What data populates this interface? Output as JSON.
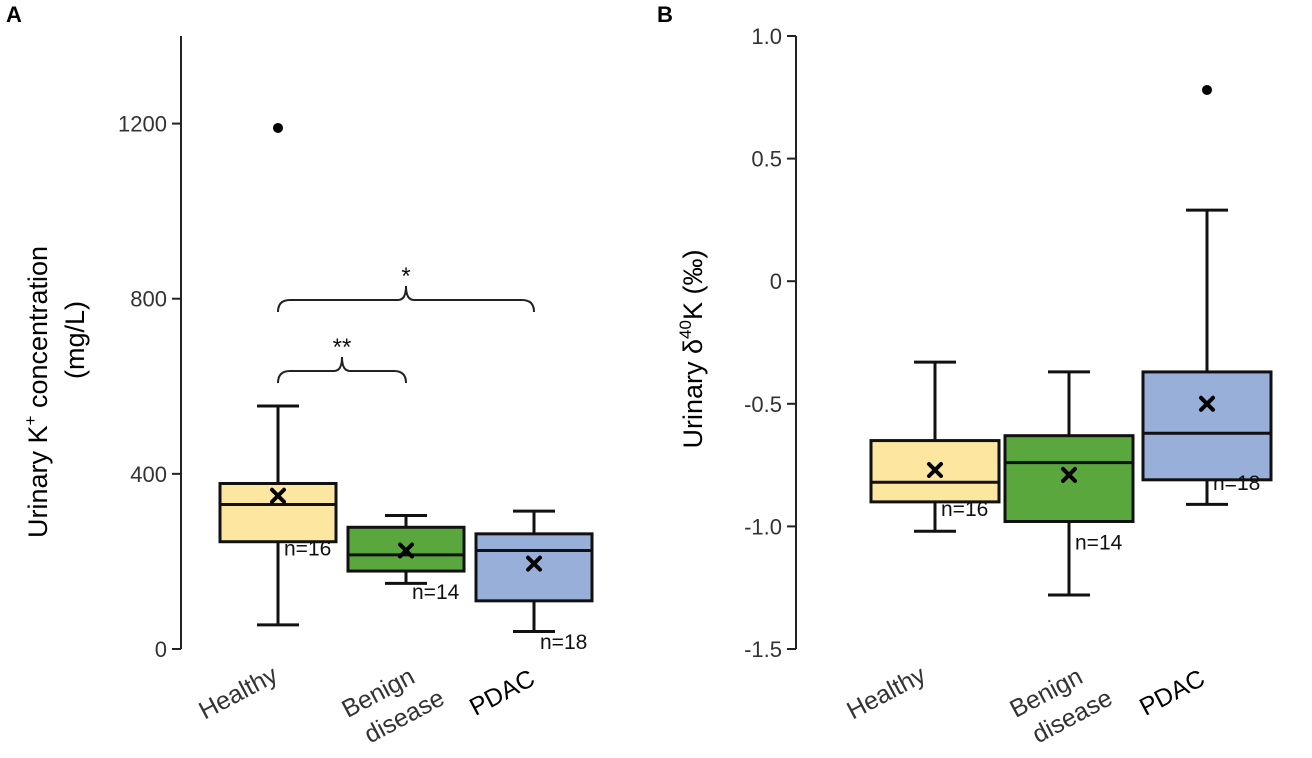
{
  "chart_data": [
    {
      "type": "box",
      "panel": "A",
      "ylabel_line1": "Urinary K",
      "ylabel_sup": "+",
      "ylabel_line1_tail": " concentration",
      "ylabel_line2": "(mg/L)",
      "ylim": [
        0,
        1400
      ],
      "yticks": [
        0,
        400,
        800,
        1200
      ],
      "ytick_labels": [
        "0",
        "400",
        "800",
        "1200"
      ],
      "categories": [
        {
          "line1": "Healthy",
          "line2": "",
          "bold": false
        },
        {
          "line1": "Benign",
          "line2": "disease",
          "bold": false
        },
        {
          "line1": "PDAC",
          "line2": "",
          "bold": true
        }
      ],
      "series": [
        {
          "name": "Healthy",
          "color": "#fde7a0",
          "whisker_low": 55,
          "q1": 245,
          "median": 330,
          "q3": 378,
          "whisker_high": 555,
          "mean": 350,
          "outliers": [
            1190
          ],
          "n_label": "n=16"
        },
        {
          "name": "Benign disease",
          "color": "#5aa83d",
          "whisker_low": 150,
          "q1": 178,
          "median": 215,
          "q3": 278,
          "whisker_high": 305,
          "mean": 225,
          "outliers": [],
          "n_label": "n=14"
        },
        {
          "name": "PDAC",
          "color": "#98afd9",
          "whisker_low": 40,
          "q1": 110,
          "median": 225,
          "q3": 263,
          "whisker_high": 315,
          "mean": 195,
          "outliers": [],
          "n_label": "n=18"
        }
      ],
      "significance": [
        {
          "from": 0,
          "to": 1,
          "level": 640,
          "label": "**"
        },
        {
          "from": 0,
          "to": 2,
          "level": 800,
          "label": "*"
        }
      ]
    },
    {
      "type": "box",
      "panel": "B",
      "ylabel_prefix": "Urinary δ",
      "ylabel_sup": "40",
      "ylabel_suffix": "K (‰)",
      "ylim": [
        -1.5,
        1.0
      ],
      "yticks": [
        -1.5,
        -1.0,
        -0.5,
        0,
        0.5,
        1.0
      ],
      "ytick_labels": [
        "-1.5",
        "-1.0",
        "-0.5",
        "0",
        "0.5",
        "1.0"
      ],
      "categories": [
        {
          "line1": "Healthy",
          "line2": "",
          "bold": false
        },
        {
          "line1": "Benign",
          "line2": "disease",
          "bold": false
        },
        {
          "line1": "PDAC",
          "line2": "",
          "bold": true
        }
      ],
      "series": [
        {
          "name": "Healthy",
          "color": "#fde7a0",
          "whisker_low": -1.02,
          "q1": -0.9,
          "median": -0.82,
          "q3": -0.65,
          "whisker_high": -0.33,
          "mean": -0.77,
          "outliers": [],
          "n_label": "n=16"
        },
        {
          "name": "Benign disease",
          "color": "#5aa83d",
          "whisker_low": -1.28,
          "q1": -0.98,
          "median": -0.74,
          "q3": -0.63,
          "whisker_high": -0.37,
          "mean": -0.79,
          "outliers": [],
          "n_label": "n=14"
        },
        {
          "name": "PDAC",
          "color": "#98afd9",
          "whisker_low": -0.91,
          "q1": -0.81,
          "median": -0.62,
          "q3": -0.37,
          "whisker_high": 0.29,
          "mean": -0.5,
          "outliers": [
            0.78
          ],
          "n_label": "n=18"
        }
      ],
      "significance": []
    }
  ]
}
